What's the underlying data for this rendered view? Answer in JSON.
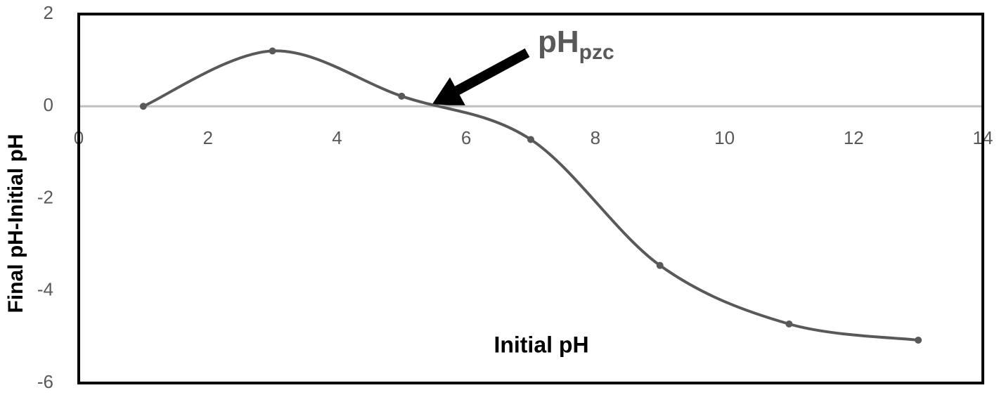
{
  "chart_data": {
    "type": "line",
    "x_label": "Initial pH",
    "y_label": "Final pH-Initial pH",
    "annotation": {
      "text": "pH",
      "subscript": "pzc"
    },
    "series": [
      {
        "color": "#595959",
        "x": [
          1,
          3,
          5,
          7,
          9,
          11,
          13
        ],
        "values": [
          0,
          1.2,
          0.22,
          -0.72,
          -3.45,
          -4.72,
          -5.07
        ]
      }
    ],
    "xlim": [
      0,
      14
    ],
    "xticks": [
      0,
      2,
      4,
      6,
      8,
      10,
      12,
      14
    ],
    "ylim": [
      -6,
      2
    ],
    "yticks": [
      -6,
      -4,
      -2,
      0,
      2
    ],
    "smooth": true,
    "markers": true
  }
}
